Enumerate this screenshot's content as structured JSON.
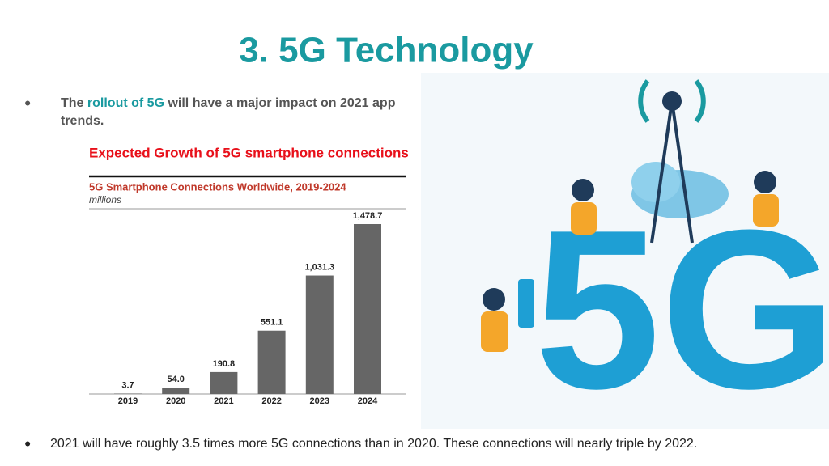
{
  "slide": {
    "title": "3. 5G Technology",
    "bullet1": {
      "before": "The",
      "highlight": "rollout of 5G",
      "after": "will have a major impact on 2021 app",
      "after2": "trends."
    },
    "caption": "Expected Growth of 5G smartphone connections",
    "bullet2": "2021 will have roughly 3.5 times more 5G connections than in 2020. These connections will nearly triple by 2022.",
    "illustration": {
      "label": "5G"
    }
  },
  "chart_data": {
    "type": "bar",
    "title": "5G Smartphone Connections Worldwide, 2019-2024",
    "subtitle": "millions",
    "categories": [
      "2019",
      "2020",
      "2021",
      "2022",
      "2023",
      "2024"
    ],
    "values": [
      3.7,
      54.0,
      190.8,
      551.1,
      1031.3,
      1478.7
    ],
    "value_labels": [
      "3.7",
      "54.0",
      "190.8",
      "551.1",
      "1,031.3",
      "1,478.7"
    ],
    "color": "#666666"
  }
}
